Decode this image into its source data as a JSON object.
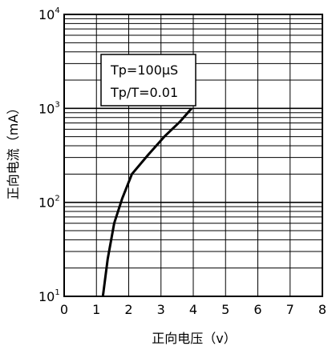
{
  "chart_data": {
    "type": "line",
    "xlabel": "正向电压（v）",
    "ylabel": "正向电流（mA）",
    "x_ticks": [
      "0",
      "1",
      "2",
      "3",
      "4",
      "5",
      "6",
      "7",
      "8"
    ],
    "y_ticks": [
      {
        "base": "10",
        "exp": "1"
      },
      {
        "base": "10",
        "exp": "2"
      },
      {
        "base": "10",
        "exp": "3"
      },
      {
        "base": "10",
        "exp": "4"
      }
    ],
    "xlim": [
      0,
      8
    ],
    "ylim": [
      10,
      10000
    ],
    "y_scale": "log",
    "grid": true,
    "annotation": [
      "Tp=100μS",
      "Tp/T=0.01"
    ],
    "series": [
      {
        "x": [
          1.2,
          1.35,
          1.55,
          1.8,
          2.1,
          2.6,
          3.1,
          3.6,
          3.95
        ],
        "y": [
          10,
          25,
          60,
          110,
          200,
          320,
          500,
          730,
          1000
        ]
      }
    ]
  }
}
